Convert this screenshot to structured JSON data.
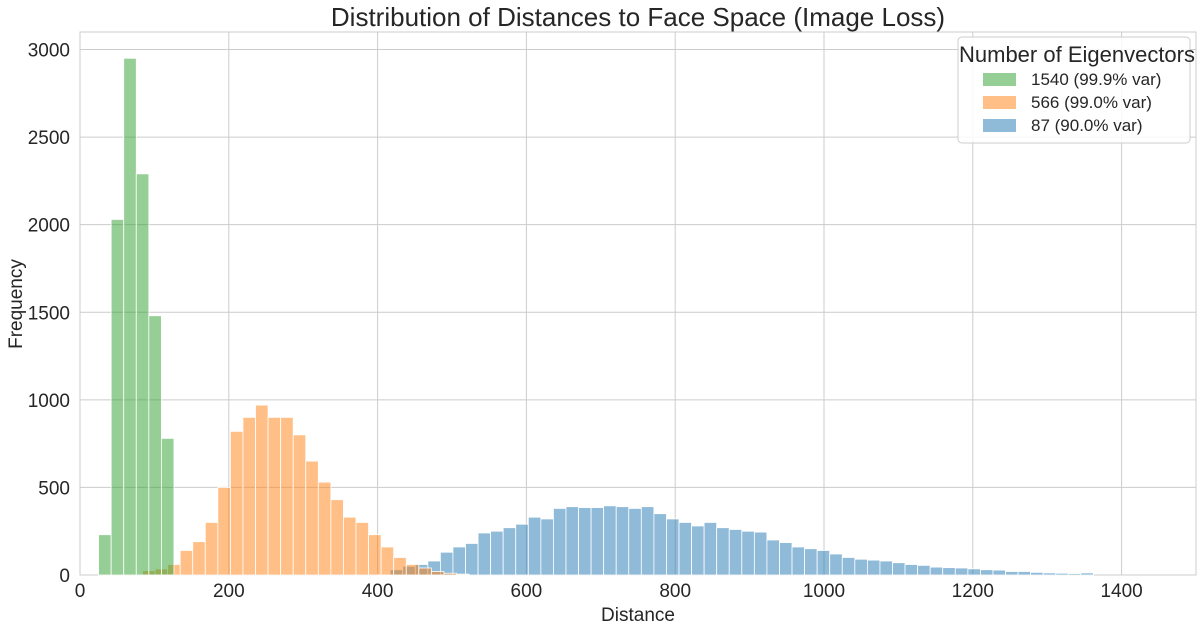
{
  "chart_data": {
    "type": "bar",
    "title": "Distribution of Distances to Face Space (Image Loss)",
    "xlabel": "Distance",
    "ylabel": "Frequency",
    "xlim": [
      0,
      1500
    ],
    "ylim": [
      0,
      3100
    ],
    "xticks": [
      "0",
      "200",
      "400",
      "600",
      "800",
      "1000",
      "1200",
      "1400"
    ],
    "yticks": [
      "0",
      "500",
      "1000",
      "1500",
      "2000",
      "2500",
      "3000"
    ],
    "grid": true,
    "legend": {
      "title": "Number of Eigenvectors",
      "placement": "top-right"
    },
    "series": [
      {
        "name": "87 (90.0% var)",
        "color": "#1f77b4",
        "alpha": 0.5,
        "bin_start": 400,
        "bin_width": 16.88,
        "values": [
          5,
          30,
          50,
          60,
          80,
          130,
          160,
          180,
          240,
          250,
          270,
          290,
          330,
          320,
          380,
          390,
          385,
          385,
          395,
          390,
          380,
          390,
          350,
          320,
          300,
          280,
          300,
          270,
          260,
          250,
          245,
          200,
          185,
          160,
          150,
          140,
          120,
          100,
          90,
          85,
          80,
          70,
          60,
          55,
          45,
          42,
          40,
          35,
          30,
          28,
          20,
          20,
          15,
          12,
          10,
          8,
          12
        ]
      },
      {
        "name": "566 (99.0% var)",
        "color": "#ff7f0e",
        "alpha": 0.5,
        "bin_start": 84,
        "bin_width": 16.88,
        "values": [
          25,
          35,
          60,
          140,
          190,
          300,
          500,
          820,
          900,
          970,
          900,
          900,
          800,
          650,
          530,
          430,
          330,
          300,
          230,
          160,
          100,
          60,
          40,
          20,
          10,
          5
        ]
      },
      {
        "name": "1540 (99.9% var)",
        "color": "#2ca02c",
        "alpha": 0.5,
        "bin_start": 25,
        "bin_width": 16.88,
        "values": [
          230,
          2030,
          2950,
          2290,
          1480,
          780
        ]
      }
    ]
  }
}
